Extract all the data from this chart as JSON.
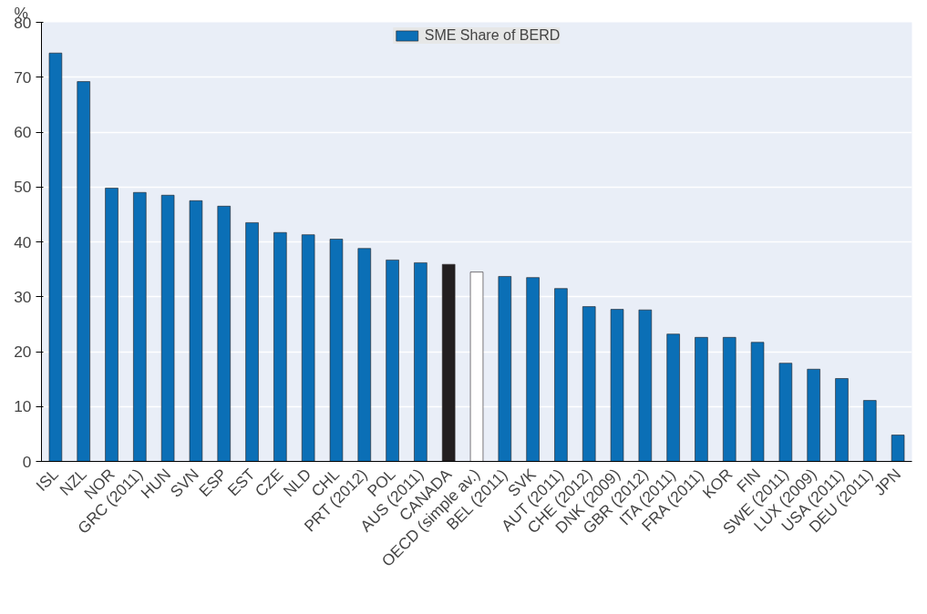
{
  "chart_data": {
    "type": "bar",
    "ylabel": "%",
    "categories": [
      "ISL",
      "NZL",
      "NOR",
      "GRC (2011)",
      "HUN",
      "SVN",
      "ESP",
      "EST",
      "CZE",
      "NLD",
      "CHL",
      "PRT (2012)",
      "POL",
      "AUS (2011)",
      "CANADA",
      "OECD (simple av.)",
      "BEL (2011)",
      "SVK",
      "AUT (2011)",
      "CHE (2012)",
      "DNK (2009)",
      "GBR (2012)",
      "ITA (2011)",
      "FRA (2011)",
      "KOR",
      "FIN",
      "SWE (2011)",
      "LUX (2009)",
      "USA (2011)",
      "DEU (2011)",
      "JPN"
    ],
    "series": [
      {
        "name": "SME Share of BERD",
        "color": "#0b6fb6",
        "values": [
          74.4,
          69.2,
          49.8,
          49.0,
          48.5,
          47.5,
          46.5,
          43.5,
          41.7,
          41.3,
          40.5,
          38.8,
          36.7,
          36.2,
          35.9,
          34.5,
          33.7,
          33.5,
          31.5,
          28.2,
          27.7,
          27.6,
          23.2,
          22.6,
          22.6,
          21.7,
          17.9,
          16.8,
          15.1,
          11.1,
          4.8
        ],
        "colors": [
          null,
          null,
          null,
          null,
          null,
          null,
          null,
          null,
          null,
          null,
          null,
          null,
          null,
          null,
          "#231f20",
          "#ffffff",
          null,
          null,
          null,
          null,
          null,
          null,
          null,
          null,
          null,
          null,
          null,
          null,
          null,
          null,
          null
        ]
      }
    ],
    "ylim": [
      0,
      80
    ],
    "yticks": [
      0,
      10,
      20,
      30,
      40,
      50,
      60,
      70,
      80
    ],
    "grid": "y",
    "legend": "top"
  }
}
